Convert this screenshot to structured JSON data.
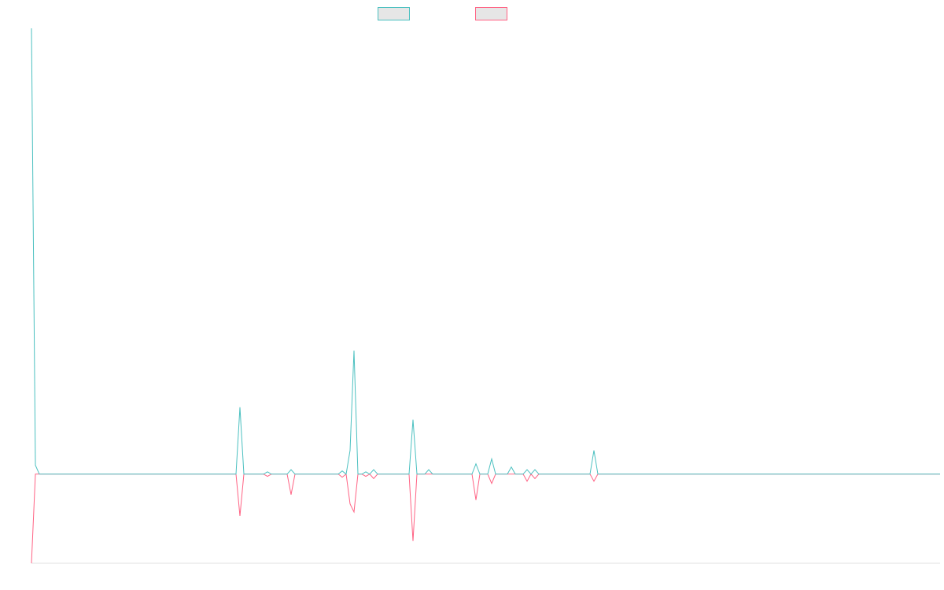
{
  "chart_data": {
    "type": "line",
    "x": [
      0,
      1,
      2,
      52,
      53,
      54,
      59,
      60,
      61,
      65,
      66,
      67,
      78,
      79,
      80,
      81,
      82,
      83,
      84,
      85,
      86,
      87,
      88,
      96,
      97,
      98,
      100,
      101,
      102,
      112,
      113,
      114,
      116,
      117,
      118,
      121,
      122,
      123,
      125,
      126,
      127,
      128,
      129,
      142,
      143,
      144,
      231
    ],
    "xlim": [
      0,
      231
    ],
    "ylim": [
      -20,
      100
    ],
    "series": [
      {
        "color": "#ff6384",
        "values": [
          -20,
          0,
          0,
          0,
          -9.4,
          0,
          0,
          -0.5,
          0,
          0,
          -4.6,
          0,
          0,
          -0.7,
          0,
          -6.7,
          -8.5,
          0,
          0,
          -0.5,
          0,
          -1,
          0,
          0,
          -15,
          0,
          0,
          0,
          0,
          0,
          -5.8,
          0,
          0,
          -2.1,
          0,
          0,
          0,
          0,
          0,
          -1.6,
          0,
          -1,
          0,
          0,
          -1.6,
          0,
          0
        ]
      },
      {
        "color": "#4bc0c0",
        "values": [
          100,
          2,
          0,
          0,
          15,
          0,
          0,
          0.5,
          0,
          0,
          1,
          0,
          0,
          0.7,
          0,
          5.3,
          27.7,
          0,
          0,
          0.5,
          0,
          1,
          0,
          0,
          12.2,
          0,
          0,
          1,
          0,
          0,
          2.3,
          0,
          0,
          3.4,
          0,
          0,
          1.6,
          0,
          0,
          1,
          0,
          1,
          0,
          0,
          5.3,
          0,
          0
        ]
      }
    ]
  }
}
